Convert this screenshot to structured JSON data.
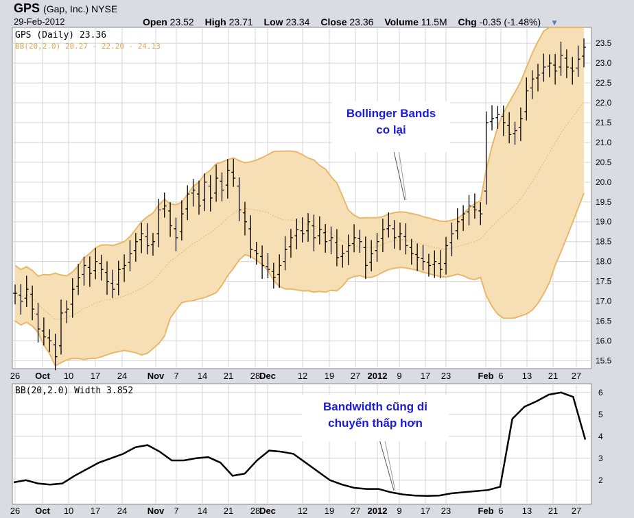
{
  "header": {
    "ticker": "GPS",
    "company": "(Gap, Inc.) NYSE",
    "date": "29-Feb-2012",
    "open_label": "Open",
    "open": "23.52",
    "high_label": "High",
    "high": "23.71",
    "low_label": "Low",
    "low": "23.34",
    "close_label": "Close",
    "close": "23.36",
    "volume_label": "Volume",
    "volume": "11.5M",
    "chg_label": "Chg",
    "chg": "-0.35 (-1.48%)"
  },
  "legend": {
    "price": "GPS (Daily) 23.36",
    "bb": "BB(20,2.0) 20.27 - 22.20 - 24.13",
    "width": "BB(20,2.0) Width 3.852"
  },
  "annotations": {
    "bands_line1": "Bollinger Bands",
    "bands_line2": "co lại",
    "bw_line1": "Bandwidth cũng di",
    "bw_line2": "chuyển thấp hơn"
  },
  "colors": {
    "band_fill": "#f6dfb4",
    "band_line": "#eab76a",
    "price_bar": "#000000",
    "annotation_text": "#1a1adb"
  },
  "chart_data": [
    {
      "type": "ohlc",
      "title": "GPS (Daily) 23.36",
      "x_ticks": [
        "26",
        "Oct",
        "10",
        "17",
        "24",
        "Nov",
        "7",
        "14",
        "21",
        "28",
        "Dec",
        "12",
        "19",
        "27",
        "2012",
        "9",
        "17",
        "23",
        "Feb",
        "6",
        "13",
        "21",
        "27"
      ],
      "y_ticks": [
        "15.5",
        "16.0",
        "16.5",
        "17.0",
        "17.5",
        "18.0",
        "18.5",
        "19.0",
        "19.5",
        "20.0",
        "20.5",
        "21.0",
        "21.5",
        "22.0",
        "22.5",
        "23.0",
        "23.5"
      ],
      "ylim": [
        15.3,
        23.9
      ],
      "grid": true,
      "close": [
        17.2,
        17.0,
        17.3,
        16.8,
        16.3,
        16.1,
        16.0,
        15.6,
        16.7,
        16.8,
        17.3,
        17.6,
        17.9,
        17.7,
        18.0,
        17.8,
        17.5,
        17.3,
        17.8,
        17.9,
        18.2,
        18.5,
        18.7,
        18.4,
        18.5,
        19.3,
        19.4,
        18.9,
        18.6,
        19.2,
        19.7,
        19.8,
        19.4,
        20.0,
        19.6,
        20.1,
        19.8,
        20.3,
        20.1,
        19.3,
        19.0,
        18.3,
        18.2,
        17.9,
        17.8,
        17.6,
        17.9,
        18.3,
        18.6,
        18.8,
        18.7,
        19.0,
        18.6,
        18.8,
        18.5,
        18.6,
        18.1,
        18.2,
        18.4,
        18.6,
        18.5,
        17.9,
        18.2,
        18.5,
        18.8,
        18.9,
        18.6,
        18.7,
        18.4,
        18.2,
        18.1,
        18.0,
        17.9,
        18.0,
        17.8,
        18.4,
        18.7,
        19.0,
        19.2,
        19.4,
        19.3,
        19.2,
        21.5,
        21.6,
        21.7,
        21.5,
        21.2,
        21.3,
        21.6,
        22.3,
        22.6,
        22.7,
        22.9,
        23.0,
        22.8,
        23.2,
        22.9,
        22.8,
        23.1,
        23.4
      ]
    },
    {
      "type": "line",
      "title": "BB(20,2.0) Width 3.852",
      "series": [
        {
          "name": "BB(20,2.0)",
          "values": [
            1.9,
            2.0,
            1.85,
            1.8,
            1.85,
            2.2,
            2.5,
            2.8,
            3.0,
            3.2,
            3.5,
            3.6,
            3.3,
            2.9,
            2.9,
            3.0,
            3.05,
            2.8,
            2.2,
            2.3,
            2.9,
            3.35,
            3.3,
            3.2,
            2.8,
            2.4,
            2.0,
            1.8,
            1.65,
            1.6,
            1.6,
            1.45,
            1.35,
            1.3,
            1.28,
            1.3,
            1.4,
            1.45,
            1.5,
            1.55,
            1.7,
            4.8,
            5.35,
            5.6,
            5.9,
            6.0,
            5.8,
            3.85
          ]
        }
      ],
      "y_ticks": [
        "2",
        "3",
        "4",
        "5",
        "6"
      ],
      "ylim": [
        0.9,
        6.4
      ],
      "grid": true
    }
  ]
}
